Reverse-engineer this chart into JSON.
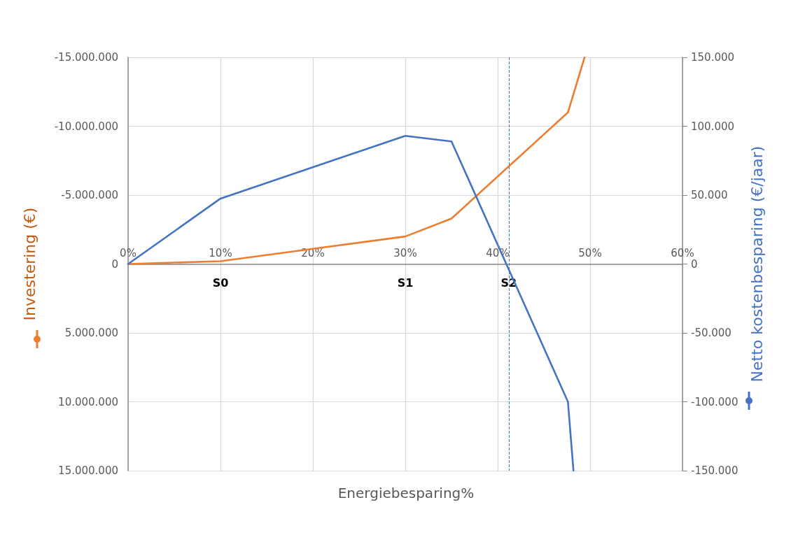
{
  "chart_data": {
    "type": "line",
    "ylabel": "Investering (€)",
    "y2label": "Netto kostenbesparing (€/jaar)",
    "xlabel": "Energiebesparing%",
    "xlim": [
      0,
      60
    ],
    "xticks": [
      {
        "value": 0,
        "label": "0%"
      },
      {
        "value": 10,
        "label": "10%"
      },
      {
        "value": 20,
        "label": "20%"
      },
      {
        "value": 30,
        "label": "30%"
      },
      {
        "value": 40,
        "label": "40%"
      },
      {
        "value": 50,
        "label": "50%"
      },
      {
        "value": 60,
        "label": "60%"
      }
    ],
    "ylim": [
      15000000,
      -15000000
    ],
    "yticks": [
      {
        "value": -15000000,
        "label": "-15.000.000"
      },
      {
        "value": -10000000,
        "label": "-10.000.000"
      },
      {
        "value": -5000000,
        "label": "-5.000.000"
      },
      0,
      {
        "value": 5000000,
        "label": "5.000.000"
      },
      {
        "value": 10000000,
        "label": "10.000.000"
      },
      {
        "value": 15000000,
        "label": "15.000.000"
      }
    ],
    "y2lim": [
      -150000,
      150000
    ],
    "y2ticks": [
      {
        "value": -150000,
        "label": "-150.000"
      },
      {
        "value": -100000,
        "label": "-100.000"
      },
      {
        "value": -50000,
        "label": "-50.000"
      },
      0,
      {
        "value": 50000,
        "label": "50.000"
      },
      {
        "value": 100000,
        "label": "100.000"
      },
      {
        "value": 150000,
        "label": "150.000"
      }
    ],
    "series": [
      {
        "color": "#ed7d31",
        "x": [
          0,
          10,
          20,
          30,
          35,
          47.6,
          49.4
        ],
        "values": [
          0,
          -200000,
          -1100000,
          -2000000,
          -3300000,
          -11000000,
          -15000000
        ]
      },
      {
        "color": "#4472c4",
        "axis": "y2",
        "x": [
          0,
          10,
          30,
          35,
          47.6,
          48.2
        ],
        "values": [
          0,
          47500,
          93000,
          89000,
          -100000,
          -150000
        ]
      }
    ],
    "ref_lines": [
      {
        "axis": "x",
        "value": 41.2,
        "color": "#4472c4",
        "line_style": "dashed"
      }
    ],
    "annotations": [
      "S0",
      "S1",
      {
        "text": "S2",
        "x": 41.2
      }
    ],
    "grid": true,
    "marker": "none",
    "line_style": "solid"
  }
}
